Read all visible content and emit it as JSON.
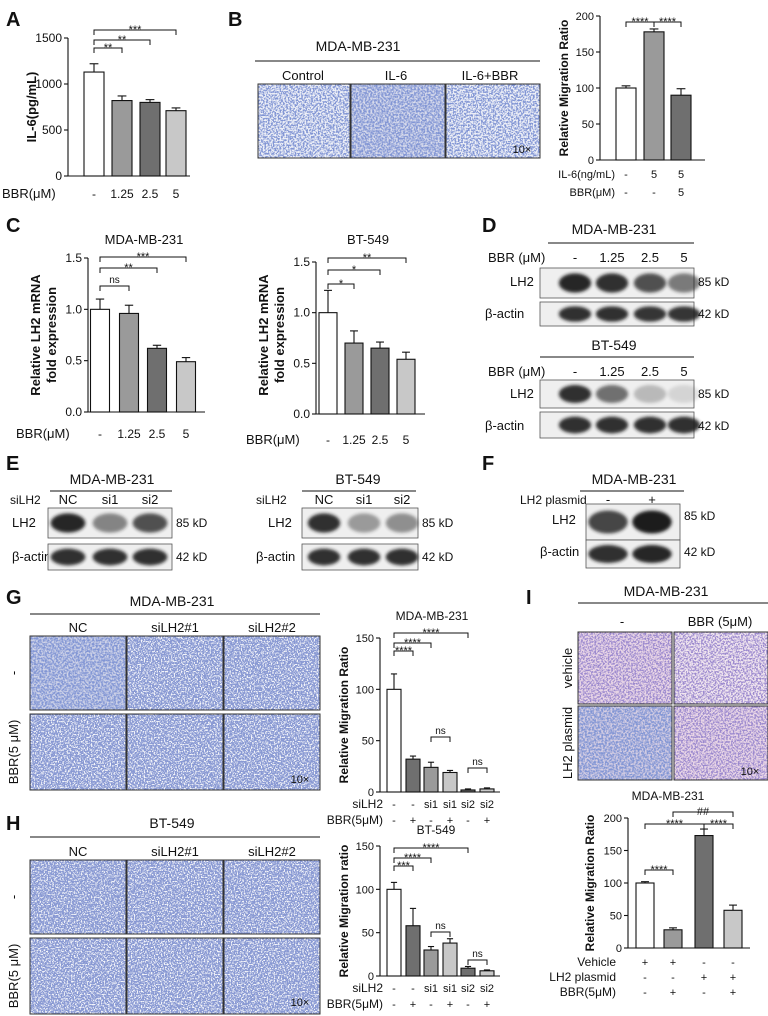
{
  "colors": {
    "white": "#ffffff",
    "gray_light": "#c8c8c8",
    "gray": "#9a9a9a",
    "gray_dark": "#6f6f6f",
    "stain": "#3a4fa8",
    "stain_bg_light": "#eef0f7",
    "stain_pink": "#e9d6e6",
    "band": "#1a1a1a"
  },
  "panels": {
    "A": {
      "letter": "A",
      "xlabel": "BBR(μM)",
      "ylabel": "IL-6(pg/mL)",
      "yticks": [
        "0",
        "500",
        "1000",
        "1500"
      ],
      "cats": [
        "-",
        "1.25",
        "2.5",
        "5"
      ],
      "sigs": [
        "***",
        "**",
        "**"
      ]
    },
    "B": {
      "letter": "B",
      "cellline": "MDA-MB-231",
      "conds": [
        "Control",
        "IL-6",
        "IL-6+BBR"
      ],
      "mag": "10×",
      "ylabel": "Relative Migration Ratio",
      "yticks": [
        "0",
        "50",
        "100",
        "150",
        "200"
      ],
      "rows": [
        {
          "label": "IL-6(ng/mL)",
          "vals": [
            "-",
            "5",
            "5"
          ]
        },
        {
          "label": "BBR(μM)",
          "vals": [
            "-",
            "-",
            "5"
          ]
        }
      ],
      "sigs": [
        "****",
        "****"
      ]
    },
    "C": {
      "letter": "C",
      "title1": "MDA-MB-231",
      "title2": "BT-549",
      "ylabel": "Relative LH2 mRNA fold expression",
      "ylabel_l1": "Relative LH2 mRNA",
      "ylabel_l2": "fold expression",
      "yticks": [
        "0.0",
        "0.5",
        "1.0",
        "1.5"
      ],
      "xlabel": "BBR(μM)",
      "cats": [
        "-",
        "1.25",
        "2.5",
        "5"
      ],
      "sigs1": [
        "ns",
        "**",
        "***"
      ],
      "sigs2": [
        "*",
        "*",
        "**"
      ]
    },
    "D": {
      "letter": "D",
      "cellline1": "MDA-MB-231",
      "cellline2": "BT-549",
      "rowlabel": "BBR (μM)",
      "lanes": [
        "-",
        "1.25",
        "2.5",
        "5"
      ],
      "protein": "LH2",
      "loading": "β-actin",
      "kd1": "85 kD",
      "kd2": "42 kD"
    },
    "E": {
      "letter": "E",
      "cellline1": "MDA-MB-231",
      "cellline2": "BT-549",
      "rowlabel": "siLH2",
      "lanes": [
        "NC",
        "si1",
        "si2"
      ],
      "protein": "LH2",
      "loading": "β-actin",
      "kd1": "85 kD",
      "kd2": "42 kD"
    },
    "F": {
      "letter": "F",
      "cellline": "MDA-MB-231",
      "rowlabel": "LH2 plasmid",
      "lanes": [
        "-",
        "+"
      ],
      "protein": "LH2",
      "loading": "β-actin",
      "kd1": "85 kD",
      "kd2": "42 kD"
    },
    "G": {
      "letter": "G",
      "cellline": "MDA-MB-231",
      "cols": [
        "NC",
        "siLH2#1",
        "siLH2#2"
      ],
      "rowlabels": [
        "-",
        "BBR(5 μM)"
      ],
      "mag": "10×",
      "charttitle": "MDA-MB-231",
      "ylabel": "Relative Migration Ratio",
      "yticks": [
        "0",
        "50",
        "100",
        "150"
      ],
      "rows": [
        {
          "label": "siLH2",
          "vals": [
            "-",
            "-",
            "si1",
            "si1",
            "si2",
            "si2"
          ]
        },
        {
          "label": "BBR(5μM)",
          "vals": [
            "-",
            "+",
            "-",
            "+",
            "-",
            "+"
          ]
        }
      ],
      "sigs": [
        "****",
        "****",
        "****",
        "ns",
        "ns"
      ]
    },
    "H": {
      "letter": "H",
      "cellline": "BT-549",
      "cols": [
        "NC",
        "siLH2#1",
        "siLH2#2"
      ],
      "rowlabels": [
        "-",
        "BBR(5 μM)"
      ],
      "mag": "10×",
      "charttitle": "BT-549",
      "ylabel": "Relative Migration ratio",
      "yticks": [
        "0",
        "50",
        "100",
        "150"
      ],
      "rows": [
        {
          "label": "siLH2",
          "vals": [
            "-",
            "-",
            "si1",
            "si1",
            "si2",
            "si2"
          ]
        },
        {
          "label": "BBR(5μM)",
          "vals": [
            "-",
            "+",
            "-",
            "+",
            "-",
            "+"
          ]
        }
      ],
      "sigs": [
        "***",
        "****",
        "****",
        "ns",
        "ns"
      ]
    },
    "I": {
      "letter": "I",
      "cellline": "MDA-MB-231",
      "cols": [
        "-",
        "BBR (5μM)"
      ],
      "rowlabels": [
        "vehicle",
        "LH2 plasmid"
      ],
      "mag": "10×",
      "charttitle": "MDA-MB-231",
      "ylabel": "Relative Migration Ratio",
      "yticks": [
        "0",
        "50",
        "100",
        "150",
        "200"
      ],
      "rows": [
        {
          "label": "Vehicle",
          "vals": [
            "+",
            "+",
            "-",
            "-"
          ]
        },
        {
          "label": "LH2 plasmid",
          "vals": [
            "-",
            "-",
            "+",
            "+"
          ]
        },
        {
          "label": "BBR(5μM)",
          "vals": [
            "-",
            "+",
            "-",
            "+"
          ]
        }
      ],
      "sigs": [
        "****",
        "****",
        "****",
        "##"
      ]
    }
  },
  "chart_data": [
    {
      "type": "bar",
      "panel": "A",
      "categories": [
        "-",
        "1.25",
        "2.5",
        "5"
      ],
      "values": [
        1130,
        820,
        800,
        710
      ],
      "errors": [
        90,
        50,
        30,
        30
      ],
      "colors": [
        "#ffffff",
        "#9a9a9a",
        "#6f6f6f",
        "#c8c8c8"
      ],
      "xlabel": "BBR(μM)",
      "ylabel": "IL-6(pg/mL)",
      "ylim": [
        0,
        1500
      ],
      "yticks": [
        0,
        500,
        1000,
        1500
      ],
      "annotations": [
        {
          "pair": [
            0,
            1
          ],
          "text": "**"
        },
        {
          "pair": [
            0,
            2
          ],
          "text": "**"
        },
        {
          "pair": [
            0,
            3
          ],
          "text": "***"
        }
      ]
    },
    {
      "type": "bar",
      "panel": "B",
      "categories": [
        "1",
        "2",
        "3"
      ],
      "values": [
        100,
        178,
        90
      ],
      "errors": [
        3,
        4,
        9
      ],
      "colors": [
        "#ffffff",
        "#9a9a9a",
        "#6f6f6f"
      ],
      "ylabel": "Relative Migration Ratio",
      "ylim": [
        0,
        200
      ],
      "yticks": [
        0,
        50,
        100,
        150,
        200
      ],
      "annotations": [
        {
          "pair": [
            0,
            1
          ],
          "text": "****"
        },
        {
          "pair": [
            1,
            2
          ],
          "text": "****"
        }
      ]
    },
    {
      "type": "bar",
      "panel": "C-left",
      "title": "MDA-MB-231",
      "categories": [
        "-",
        "1.25",
        "2.5",
        "5"
      ],
      "values": [
        1.0,
        0.96,
        0.62,
        0.49
      ],
      "errors": [
        0.1,
        0.08,
        0.03,
        0.04
      ],
      "colors": [
        "#ffffff",
        "#9a9a9a",
        "#6f6f6f",
        "#c8c8c8"
      ],
      "xlabel": "BBR(μM)",
      "ylabel": "Relative LH2 mRNA fold expression",
      "ylim": [
        0,
        1.5
      ],
      "yticks": [
        0,
        0.5,
        1.0,
        1.5
      ],
      "annotations": [
        {
          "pair": [
            0,
            1
          ],
          "text": "ns"
        },
        {
          "pair": [
            0,
            2
          ],
          "text": "**"
        },
        {
          "pair": [
            0,
            3
          ],
          "text": "***"
        }
      ]
    },
    {
      "type": "bar",
      "panel": "C-right",
      "title": "BT-549",
      "categories": [
        "-",
        "1.25",
        "2.5",
        "5"
      ],
      "values": [
        1.0,
        0.7,
        0.65,
        0.54
      ],
      "errors": [
        0.22,
        0.12,
        0.06,
        0.07
      ],
      "colors": [
        "#ffffff",
        "#9a9a9a",
        "#6f6f6f",
        "#c8c8c8"
      ],
      "xlabel": "BBR(μM)",
      "ylabel": "Relative LH2 mRNA fold expression",
      "ylim": [
        0,
        1.5
      ],
      "yticks": [
        0,
        0.5,
        1.0,
        1.5
      ],
      "annotations": [
        {
          "pair": [
            0,
            1
          ],
          "text": "*"
        },
        {
          "pair": [
            0,
            2
          ],
          "text": "*"
        },
        {
          "pair": [
            0,
            3
          ],
          "text": "**"
        }
      ]
    },
    {
      "type": "bar",
      "panel": "G",
      "title": "MDA-MB-231",
      "categories": [
        "1",
        "2",
        "3",
        "4",
        "5",
        "6"
      ],
      "values": [
        100,
        32,
        24,
        19,
        2,
        3
      ],
      "errors": [
        15,
        3,
        5,
        2,
        1,
        1
      ],
      "colors": [
        "#ffffff",
        "#6f6f6f",
        "#9a9a9a",
        "#c8c8c8",
        "#6f6f6f",
        "#c8c8c8"
      ],
      "ylabel": "Relative Migration Ratio",
      "ylim": [
        0,
        150
      ],
      "yticks": [
        0,
        50,
        100,
        150
      ],
      "annotations": [
        {
          "pair": [
            0,
            1
          ],
          "text": "****"
        },
        {
          "pair": [
            0,
            2
          ],
          "text": "****"
        },
        {
          "pair": [
            0,
            4
          ],
          "text": "****"
        },
        {
          "pair": [
            2,
            3
          ],
          "text": "ns"
        },
        {
          "pair": [
            4,
            5
          ],
          "text": "ns"
        }
      ]
    },
    {
      "type": "bar",
      "panel": "H",
      "title": "BT-549",
      "categories": [
        "1",
        "2",
        "3",
        "4",
        "5",
        "6"
      ],
      "values": [
        100,
        58,
        30,
        38,
        9,
        6
      ],
      "errors": [
        8,
        20,
        4,
        5,
        2,
        1
      ],
      "colors": [
        "#ffffff",
        "#6f6f6f",
        "#9a9a9a",
        "#c8c8c8",
        "#6f6f6f",
        "#c8c8c8"
      ],
      "ylabel": "Relative Migration ratio",
      "ylim": [
        0,
        150
      ],
      "yticks": [
        0,
        50,
        100,
        150
      ],
      "annotations": [
        {
          "pair": [
            0,
            1
          ],
          "text": "***"
        },
        {
          "pair": [
            0,
            2
          ],
          "text": "****"
        },
        {
          "pair": [
            0,
            4
          ],
          "text": "****"
        },
        {
          "pair": [
            2,
            3
          ],
          "text": "ns"
        },
        {
          "pair": [
            4,
            5
          ],
          "text": "ns"
        }
      ]
    },
    {
      "type": "bar",
      "panel": "I",
      "title": "MDA-MB-231",
      "categories": [
        "1",
        "2",
        "3",
        "4"
      ],
      "values": [
        100,
        28,
        173,
        58
      ],
      "errors": [
        2,
        3,
        10,
        8
      ],
      "colors": [
        "#ffffff",
        "#9a9a9a",
        "#6f6f6f",
        "#c8c8c8"
      ],
      "ylabel": "Relative Migration Ratio",
      "ylim": [
        0,
        200
      ],
      "yticks": [
        0,
        50,
        100,
        150,
        200
      ],
      "annotations": [
        {
          "pair": [
            0,
            1
          ],
          "text": "****"
        },
        {
          "pair": [
            0,
            2
          ],
          "text": "****"
        },
        {
          "pair": [
            2,
            3
          ],
          "text": "****"
        },
        {
          "pair": [
            1,
            3
          ],
          "text": "##"
        }
      ]
    }
  ]
}
